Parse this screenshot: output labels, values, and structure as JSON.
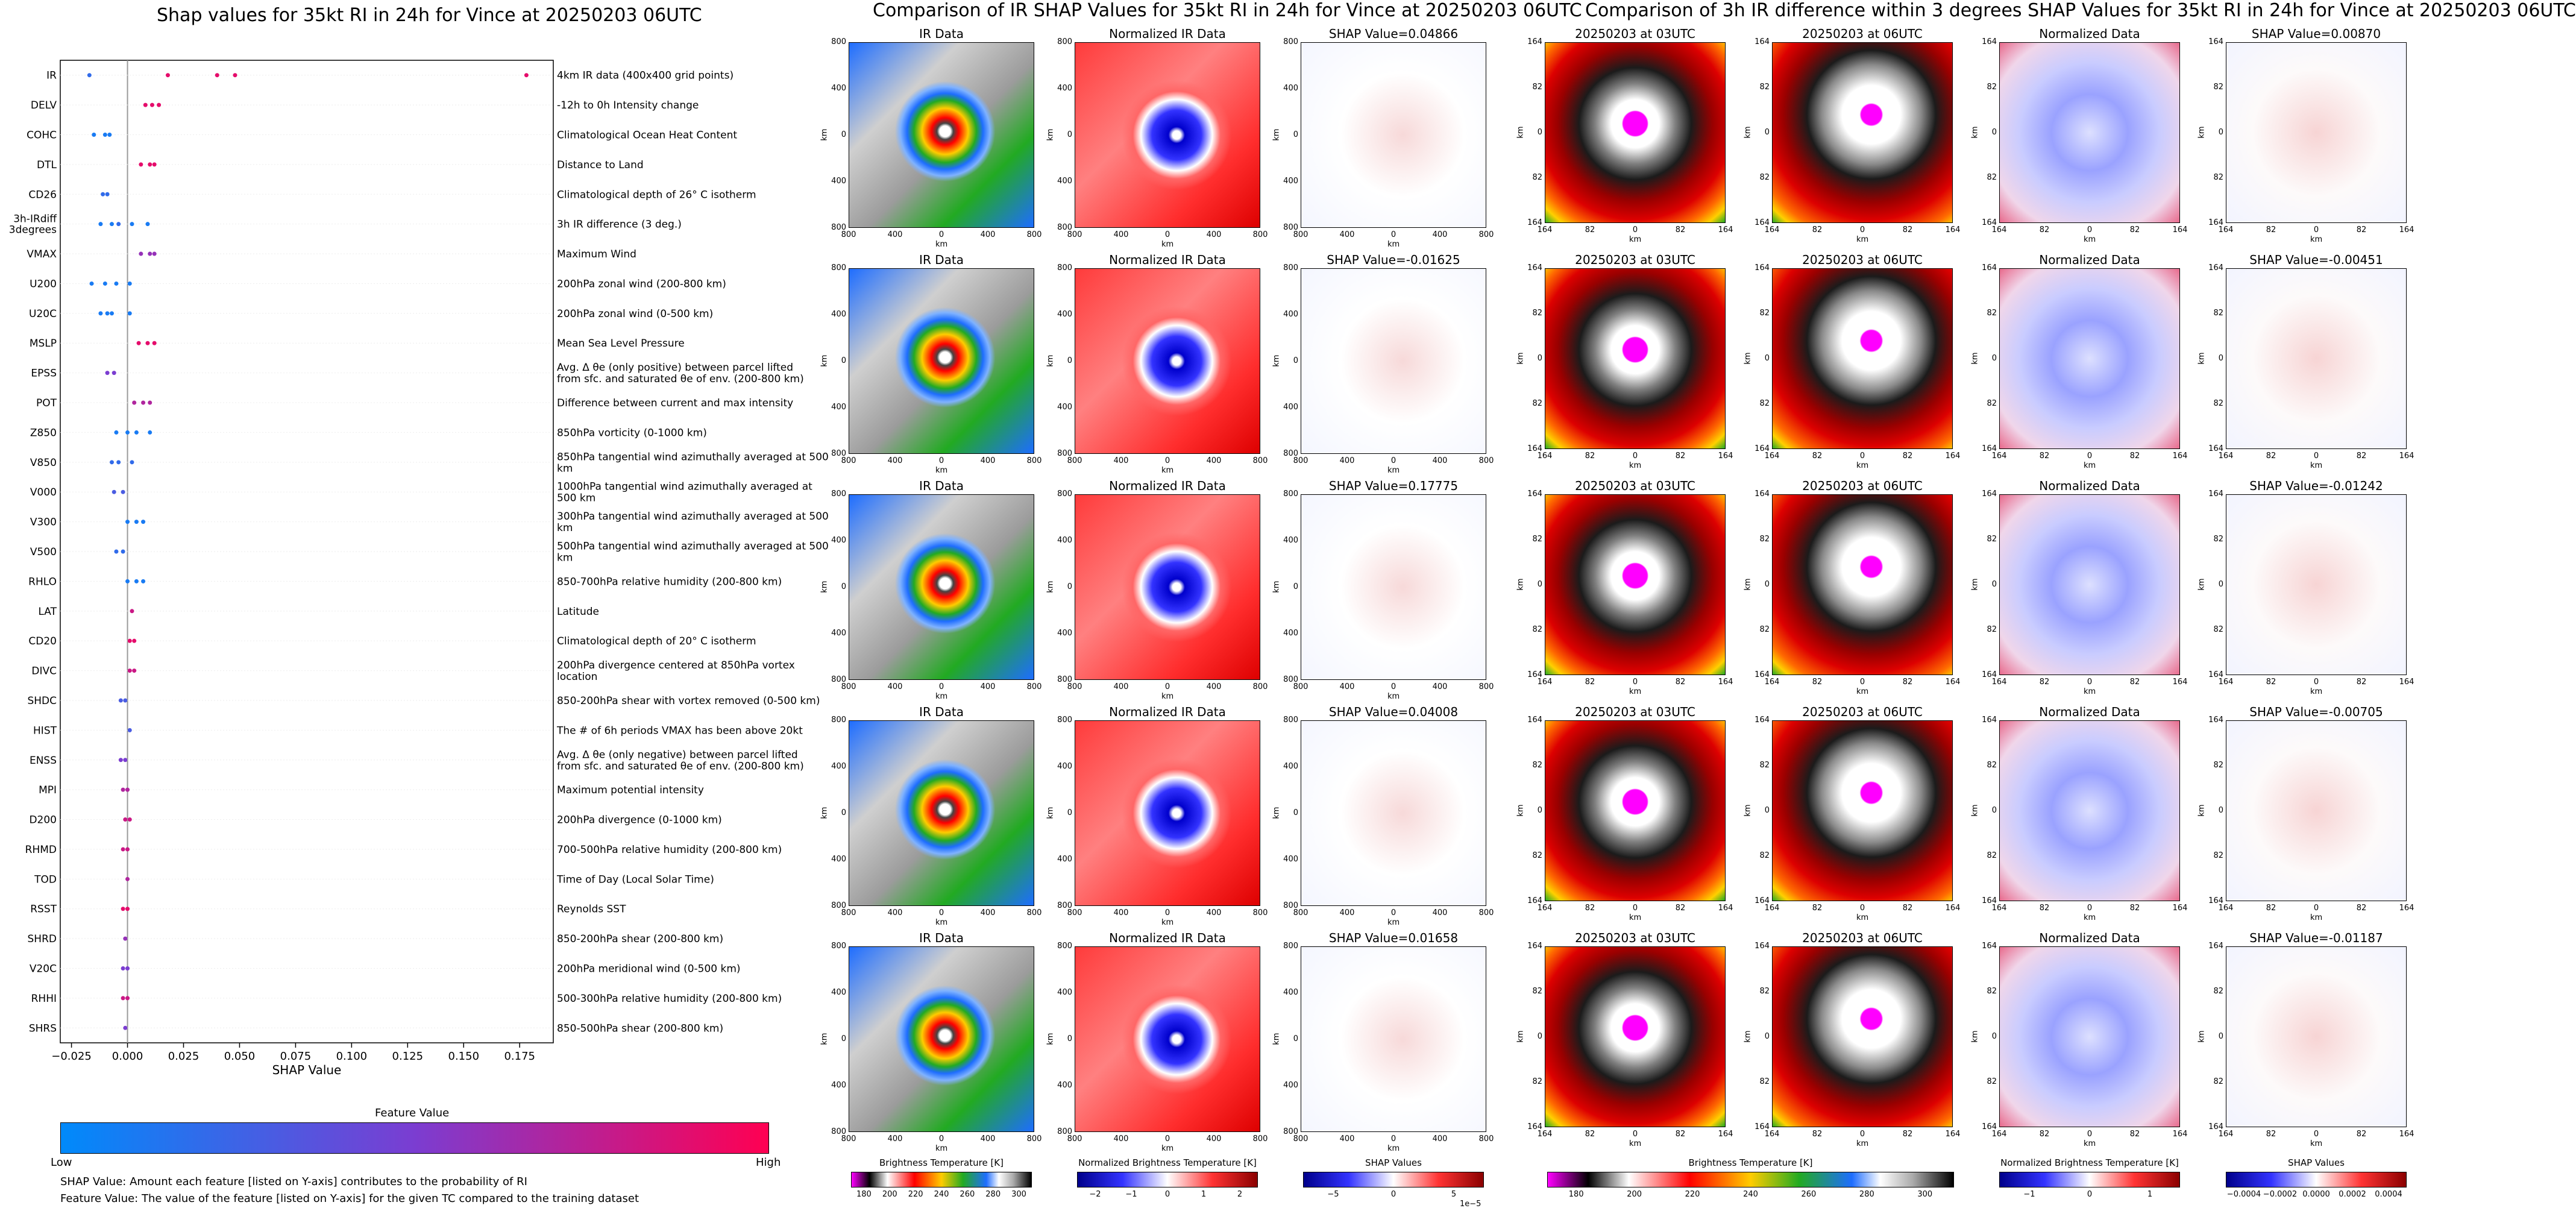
{
  "left": {
    "title": "Shap values for 35kt RI in 24h for Vince at 20250203 06UTC",
    "xlabel": "SHAP Value",
    "xticks": [
      "-0.025",
      "0.000",
      "0.025",
      "0.050",
      "0.075",
      "0.100",
      "0.125",
      "0.150",
      "0.175"
    ],
    "colorbar_title": "Feature Value",
    "colorbar_low": "Low",
    "colorbar_high": "High",
    "footnote1": "SHAP Value: Amount each feature [listed on Y-axis] contributes to the probability of RI",
    "footnote2": "Feature Value: The value of the feature [listed on Y-axis] for the given TC compared to the training dataset"
  },
  "chart_data": [
    {
      "type": "scatter",
      "title": "Shap values for 35kt RI in 24h for Vince at 20250203 06UTC",
      "xlabel": "SHAP Value",
      "xlim": [
        -0.03,
        0.19
      ],
      "grid": false,
      "features": [
        {
          "name": "IR",
          "desc": "4km IR data (400x400 grid points)",
          "points": [
            [
              -0.017,
              0.2
            ],
            [
              0.018,
              0.9
            ],
            [
              0.04,
              0.9
            ],
            [
              0.048,
              0.9
            ],
            [
              0.178,
              0.9
            ]
          ]
        },
        {
          "name": "DELV",
          "desc": "-12h to 0h Intensity change",
          "points": [
            [
              0.008,
              0.9
            ],
            [
              0.011,
              0.9
            ],
            [
              0.014,
              0.9
            ]
          ]
        },
        {
          "name": "COHC",
          "desc": "Climatological Ocean Heat Content",
          "points": [
            [
              -0.015,
              0.1
            ],
            [
              -0.01,
              0.1
            ],
            [
              -0.008,
              0.1
            ]
          ]
        },
        {
          "name": "DTL",
          "desc": "Distance to Land",
          "points": [
            [
              0.006,
              0.9
            ],
            [
              0.01,
              0.9
            ],
            [
              0.012,
              0.9
            ]
          ]
        },
        {
          "name": "CD26",
          "desc": "Climatological depth of 26° C isotherm",
          "points": [
            [
              -0.011,
              0.2
            ],
            [
              -0.009,
              0.2
            ]
          ]
        },
        {
          "name": "3h-IRdiff\n3degrees",
          "desc": "3h IR difference (3 deg.)",
          "points": [
            [
              -0.012,
              0.1
            ],
            [
              -0.007,
              0.1
            ],
            [
              -0.004,
              0.2
            ],
            [
              0.002,
              0.1
            ],
            [
              0.009,
              0.1
            ]
          ]
        },
        {
          "name": "VMAX",
          "desc": "Maximum Wind",
          "points": [
            [
              0.006,
              0.6
            ],
            [
              0.01,
              0.6
            ],
            [
              0.012,
              0.6
            ]
          ]
        },
        {
          "name": "U200",
          "desc": "200hPa zonal wind (200-800 km)",
          "points": [
            [
              -0.016,
              0.1
            ],
            [
              -0.01,
              0.1
            ],
            [
              -0.005,
              0.1
            ],
            [
              0.001,
              0.1
            ]
          ]
        },
        {
          "name": "U20C",
          "desc": "200hPa zonal wind (0-500 km)",
          "points": [
            [
              -0.012,
              0.1
            ],
            [
              -0.009,
              0.1
            ],
            [
              -0.007,
              0.1
            ],
            [
              0.001,
              0.1
            ]
          ]
        },
        {
          "name": "MSLP",
          "desc": "Mean Sea Level Pressure",
          "points": [
            [
              0.005,
              0.9
            ],
            [
              0.009,
              0.9
            ],
            [
              0.012,
              0.9
            ]
          ]
        },
        {
          "name": "EPSS",
          "desc": "Avg. Δ θe (only positive) between parcel lifted from sfc. and saturated θe of env. (200-800 km)",
          "points": [
            [
              -0.009,
              0.5
            ],
            [
              -0.006,
              0.5
            ]
          ]
        },
        {
          "name": "POT",
          "desc": "Difference between current and max intensity",
          "points": [
            [
              0.003,
              0.7
            ],
            [
              0.007,
              0.7
            ],
            [
              0.01,
              0.7
            ]
          ]
        },
        {
          "name": "Z850",
          "desc": "850hPa vorticity (0-1000 km)",
          "points": [
            [
              -0.005,
              0.1
            ],
            [
              0.0,
              0.1
            ],
            [
              0.004,
              0.1
            ],
            [
              0.01,
              0.1
            ]
          ]
        },
        {
          "name": "V850",
          "desc": "850hPa tangential wind azimuthally averaged at 500 km",
          "points": [
            [
              -0.007,
              0.2
            ],
            [
              -0.004,
              0.2
            ],
            [
              0.002,
              0.2
            ]
          ]
        },
        {
          "name": "V000",
          "desc": "1000hPa tangential wind azimuthally averaged at 500 km",
          "points": [
            [
              -0.006,
              0.3
            ],
            [
              -0.002,
              0.3
            ]
          ]
        },
        {
          "name": "V300",
          "desc": "300hPa tangential wind azimuthally averaged at 500 km",
          "points": [
            [
              0.0,
              0.1
            ],
            [
              0.004,
              0.1
            ],
            [
              0.007,
              0.1
            ]
          ]
        },
        {
          "name": "V500",
          "desc": "500hPa tangential wind azimuthally averaged at 500 km",
          "points": [
            [
              -0.005,
              0.2
            ],
            [
              -0.002,
              0.2
            ]
          ]
        },
        {
          "name": "RHLO",
          "desc": "850-700hPa relative humidity (200-800 km)",
          "points": [
            [
              0.0,
              0.1
            ],
            [
              0.004,
              0.1
            ],
            [
              0.007,
              0.1
            ]
          ]
        },
        {
          "name": "LAT",
          "desc": "Latitude",
          "points": [
            [
              0.002,
              0.8
            ]
          ]
        },
        {
          "name": "CD20",
          "desc": "Climatological depth of 20° C isotherm",
          "points": [
            [
              0.001,
              0.9
            ],
            [
              0.003,
              0.9
            ]
          ]
        },
        {
          "name": "DIVC",
          "desc": "200hPa divergence centered at 850hPa vortex location",
          "points": [
            [
              0.001,
              0.8
            ],
            [
              0.003,
              0.8
            ]
          ]
        },
        {
          "name": "SHDC",
          "desc": "850-200hPa shear with vortex removed (0-500 km)",
          "points": [
            [
              -0.003,
              0.3
            ],
            [
              -0.001,
              0.3
            ]
          ]
        },
        {
          "name": "HIST",
          "desc": "The # of 6h periods VMAX has been above 20kt",
          "points": [
            [
              0.001,
              0.3
            ]
          ]
        },
        {
          "name": "ENSS",
          "desc": "Avg. Δ θe (only negative) between parcel lifted from sfc. and saturated θe of env. (200-800 km)",
          "points": [
            [
              -0.003,
              0.5
            ],
            [
              -0.001,
              0.5
            ]
          ]
        },
        {
          "name": "MPI",
          "desc": "Maximum potential intensity",
          "points": [
            [
              -0.002,
              0.7
            ],
            [
              0.0,
              0.7
            ]
          ]
        },
        {
          "name": "D200",
          "desc": "200hPa divergence (0-1000 km)",
          "points": [
            [
              -0.001,
              0.8
            ],
            [
              0.001,
              0.8
            ]
          ]
        },
        {
          "name": "RHMD",
          "desc": "700-500hPa relative humidity (200-800 km)",
          "points": [
            [
              -0.002,
              0.8
            ],
            [
              0.0,
              0.8
            ]
          ]
        },
        {
          "name": "TOD",
          "desc": "Time of Day (Local Solar Time)",
          "points": [
            [
              0.0,
              0.7
            ]
          ]
        },
        {
          "name": "RSST",
          "desc": "Reynolds SST",
          "points": [
            [
              -0.002,
              0.9
            ],
            [
              0.0,
              0.9
            ]
          ]
        },
        {
          "name": "SHRD",
          "desc": "850-200hPa shear (200-800 km)",
          "points": [
            [
              -0.001,
              0.6
            ]
          ]
        },
        {
          "name": "V20C",
          "desc": "200hPa meridional wind (0-500 km)",
          "points": [
            [
              -0.002,
              0.5
            ],
            [
              0.0,
              0.5
            ]
          ]
        },
        {
          "name": "RHHI",
          "desc": "500-300hPa relative humidity (200-800 km)",
          "points": [
            [
              -0.002,
              0.8
            ],
            [
              0.0,
              0.8
            ]
          ]
        },
        {
          "name": "SHRS",
          "desc": "850-500hPa shear (200-800 km)",
          "points": [
            [
              -0.001,
              0.5
            ]
          ]
        }
      ]
    },
    {
      "type": "heatmap",
      "title": "Comparison of IR SHAP Values for 35kt RI in 24h for Vince at 20250203 06UTC",
      "columns": [
        "IR Data",
        "Normalized IR Data",
        "SHAP"
      ],
      "shap_values": [
        "0.04866",
        "-0.01625",
        "0.17775",
        "0.04008",
        "0.01658"
      ],
      "axis_ticks": [
        "800",
        "400",
        "0",
        "400",
        "800"
      ],
      "axis_label": "km"
    },
    {
      "type": "heatmap",
      "title": "Comparison of 3h IR difference within 3 degrees SHAP Values for 35kt RI in 24h for Vince at 20250203 06UTC",
      "columns": [
        "20250203 at 03UTC",
        "20250203 at 06UTC",
        "Normalized Data",
        "SHAP"
      ],
      "shap_values": [
        "0.00870",
        "-0.00451",
        "-0.01242",
        "-0.00705",
        "-0.01187"
      ],
      "axis_ticks": [
        "164",
        "82",
        "0",
        "82",
        "164"
      ],
      "axis_label": "km"
    }
  ],
  "mid": {
    "title": "Comparison of IR SHAP Values for 35kt RI in 24h for Vince at 20250203 06UTC",
    "col1": "IR Data",
    "col2": "Normalized IR Data",
    "shap_prefix": "SHAP Value=",
    "cb1_label": "Brightness Temperature [K]",
    "cb1_ticks": [
      "180",
      "200",
      "220",
      "240",
      "260",
      "280",
      "300"
    ],
    "cb2_label": "Normalized Brightness Temperature [K]",
    "cb2_ticks": [
      "−2",
      "−1",
      "0",
      "1",
      "2"
    ],
    "cb3_label": "SHAP Values",
    "cb3_ticks": [
      "−5",
      "0",
      "5"
    ],
    "cb3_exp": "1e−5"
  },
  "right": {
    "title": "Comparison of 3h IR difference within 3 degrees SHAP Values for 35kt RI in 24h for Vince at 20250203 06UTC",
    "col1": "20250203 at 03UTC",
    "col2": "20250203 at 06UTC",
    "col3": "Normalized Data",
    "shap_prefix": "SHAP Value=",
    "cb1_label": "Brightness Temperature [K]",
    "cb1_ticks": [
      "180",
      "200",
      "220",
      "240",
      "260",
      "280",
      "300"
    ],
    "cb2_label": "Normalized Brightness Temperature [K]",
    "cb2_ticks": [
      "−1",
      "0",
      "1"
    ],
    "cb3_label": "SHAP Values",
    "cb3_ticks": [
      "−0.0004",
      "−0.0002",
      "0.0000",
      "0.0002",
      "0.0004"
    ]
  },
  "colors": {
    "low": "#008afb",
    "high": "#ff0052"
  }
}
